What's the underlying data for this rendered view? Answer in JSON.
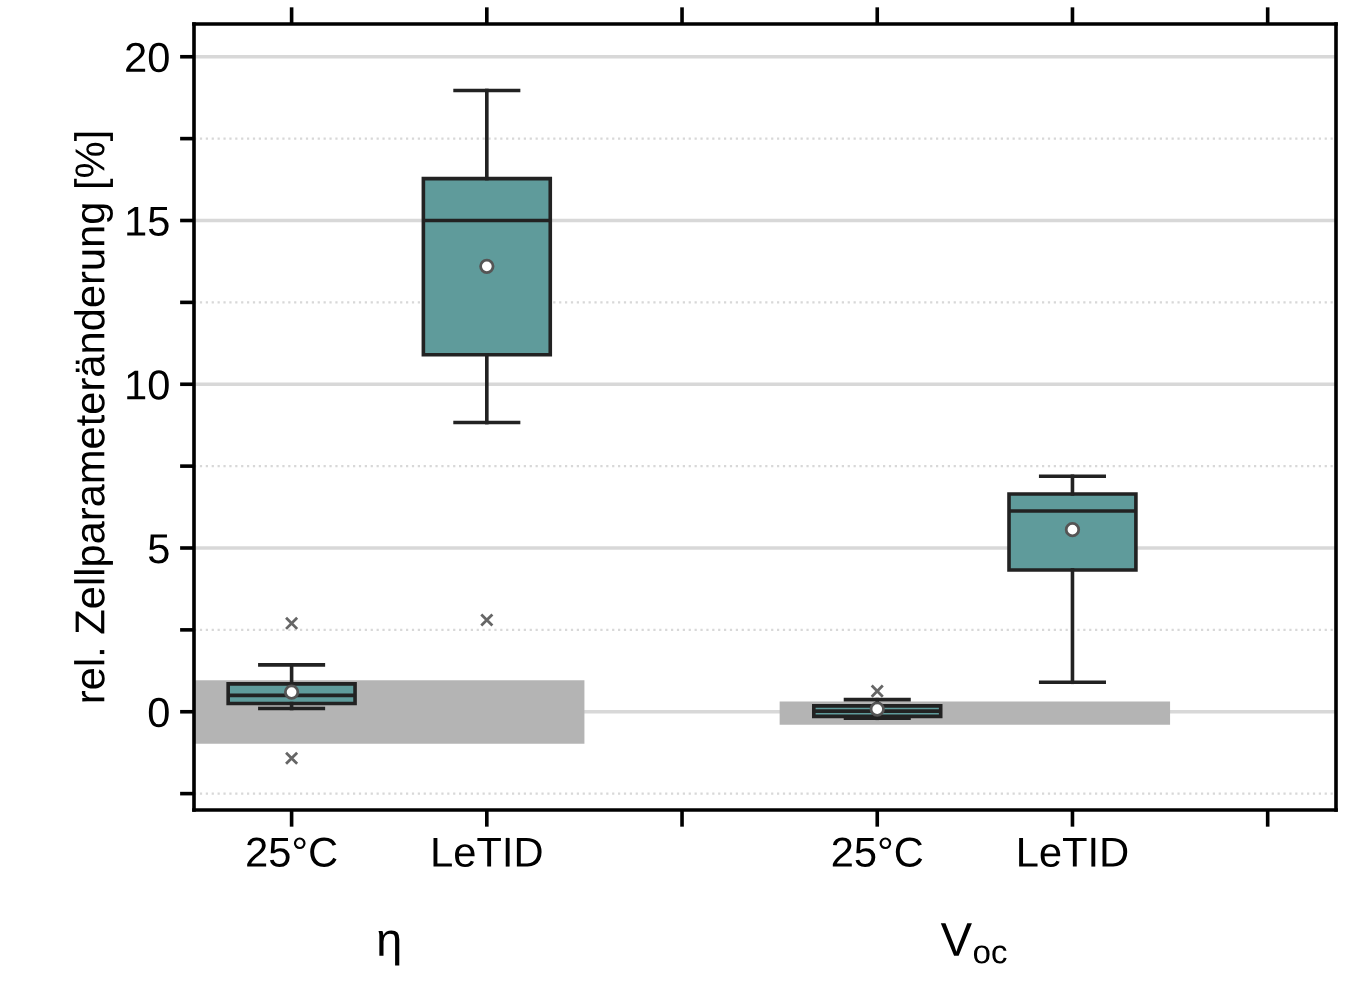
{
  "chart_data": {
    "type": "box",
    "ylabel": "rel. Zellparameteränderung [%]",
    "categories": [
      "25°C",
      "LeTID",
      null,
      "25°C",
      "LeTID",
      null
    ],
    "boxes": [
      {
        "low": 0.1,
        "q1": 0.25,
        "median": 0.5,
        "q3": 0.85,
        "high": 1.43,
        "mean": 0.6,
        "outliers": [
          2.7,
          -1.42
        ]
      },
      {
        "low": 8.83,
        "q1": 10.9,
        "median": 15.0,
        "q3": 16.28,
        "high": 18.97,
        "mean": 13.6,
        "outliers": [
          2.8
        ]
      },
      null,
      {
        "low": -0.2,
        "q1": -0.14,
        "median": 0.02,
        "q3": 0.18,
        "high": 0.37,
        "mean": 0.08,
        "outliers": [
          0.63
        ]
      },
      {
        "low": 0.9,
        "q1": 4.33,
        "median": 6.13,
        "q3": 6.65,
        "high": 7.19,
        "mean": 5.56
      },
      null
    ],
    "color": "#5f9b9b",
    "annotations": [
      "η",
      "V$_{oc}$"
    ],
    "bands": [
      {
        "axis": "y",
        "from": -0.98,
        "to": 0.96,
        "color": "#b4b4b4"
      },
      {
        "axis": "y",
        "from": -0.4,
        "to": 0.31,
        "color": "#b4b4b4"
      }
    ],
    "ylim": [
      -3.0,
      21.0
    ],
    "yticks": [
      {
        "value": -2.5,
        "label": null
      },
      0,
      {
        "value": 2.5,
        "label": null
      },
      5,
      {
        "value": 7.5,
        "label": null
      },
      10,
      {
        "value": 12.5,
        "label": null
      },
      15,
      {
        "value": 17.5,
        "label": null
      },
      20
    ],
    "grid": "y"
  }
}
